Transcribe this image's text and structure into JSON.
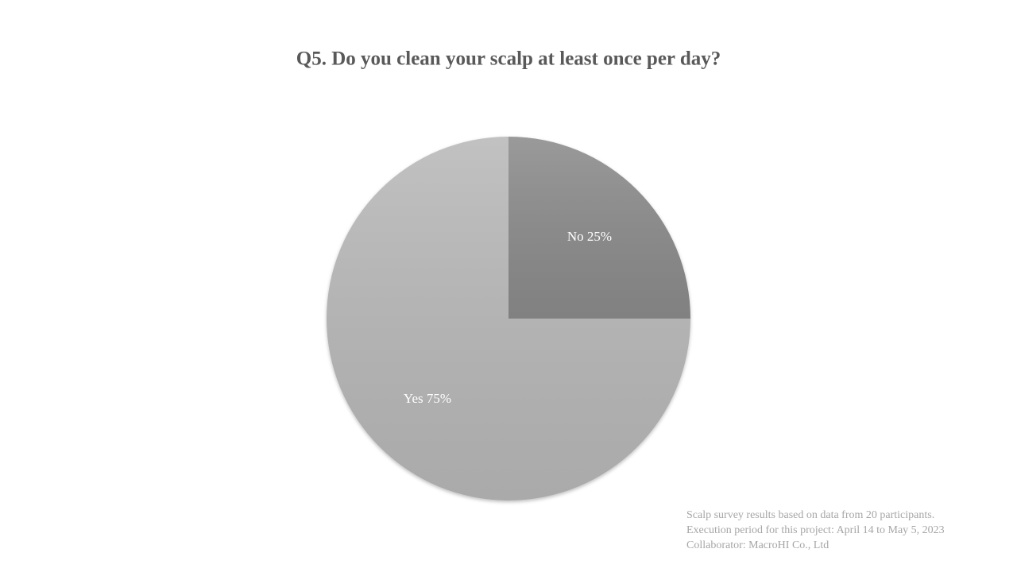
{
  "chart_data": {
    "type": "pie",
    "title": "Q5. Do you clean your scalp at least once per day?",
    "values": [
      25,
      75
    ],
    "value_labels": [
      "No 25%",
      "Yes 75%"
    ],
    "colors": [
      "#8c8c8c",
      "#b9b9b9"
    ],
    "notes": [
      "Scalp survey results based on data from 20 participants.",
      "Execution period for this project: April 14 to May 5, 2023",
      "Collaborator: MacroHI Co., Ltd"
    ]
  }
}
